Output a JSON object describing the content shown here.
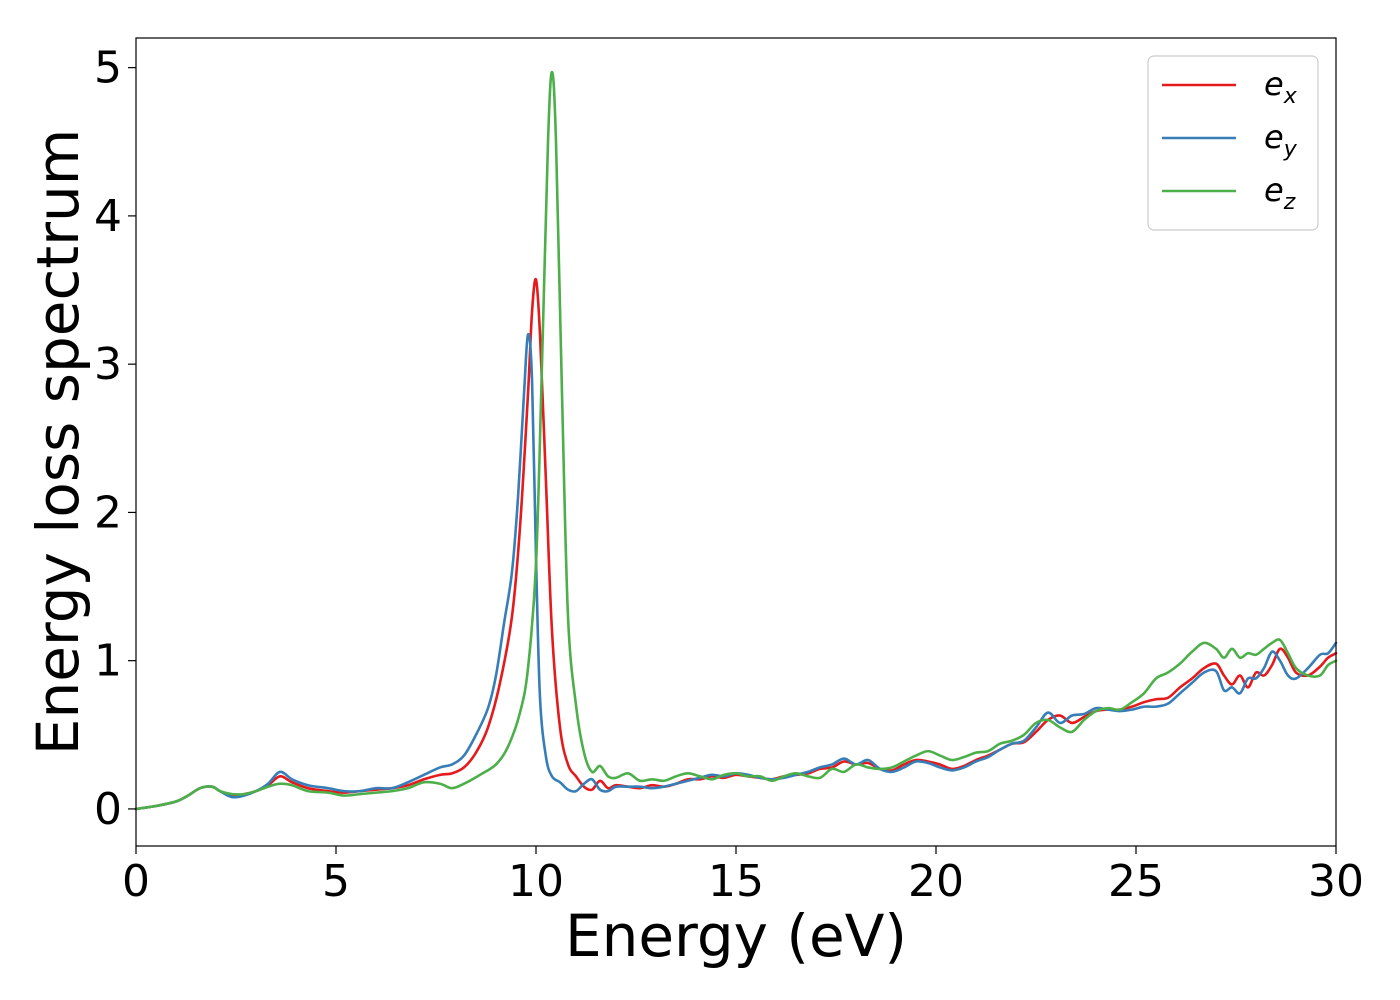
{
  "chart_data": {
    "type": "line",
    "xlabel": "Energy (eV)",
    "ylabel": "Energy loss spectrum",
    "xlim": [
      0,
      30
    ],
    "ylim": [
      -0.25,
      5.2
    ],
    "xticks": [
      0,
      5,
      10,
      15,
      20,
      25,
      30
    ],
    "yticks": [
      0,
      1,
      2,
      3,
      4,
      5
    ],
    "grid": false,
    "legend_position": "top-right",
    "series": [
      {
        "name": "e_x",
        "label_main": "e",
        "label_sub": "x",
        "color": "#e41a1c",
        "x": [
          0,
          0.5,
          1,
          1.3,
          1.6,
          1.9,
          2.1,
          2.4,
          2.7,
          3.0,
          3.3,
          3.6,
          3.9,
          4.3,
          4.8,
          5.2,
          5.6,
          6.0,
          6.4,
          6.8,
          7.2,
          7.6,
          7.9,
          8.2,
          8.5,
          8.8,
          9.1,
          9.4,
          9.6,
          9.8,
          9.9,
          10.0,
          10.1,
          10.25,
          10.4,
          10.6,
          10.8,
          11.0,
          11.2,
          11.4,
          11.6,
          11.8,
          12.0,
          12.3,
          12.6,
          12.9,
          13.2,
          13.5,
          13.8,
          14.1,
          14.4,
          14.7,
          15.0,
          15.3,
          15.6,
          15.9,
          16.2,
          16.5,
          16.8,
          17.1,
          17.4,
          17.7,
          18.0,
          18.3,
          18.6,
          18.9,
          19.2,
          19.5,
          19.8,
          20.1,
          20.4,
          20.7,
          21.0,
          21.3,
          21.6,
          21.9,
          22.2,
          22.5,
          22.8,
          23.1,
          23.4,
          23.7,
          24.0,
          24.3,
          24.6,
          24.9,
          25.2,
          25.5,
          25.8,
          26.1,
          26.4,
          26.7,
          27.0,
          27.2,
          27.4,
          27.6,
          27.8,
          28.0,
          28.2,
          28.4,
          28.6,
          28.8,
          29.0,
          29.3,
          29.6,
          29.8,
          30.0
        ],
        "y": [
          0.0,
          0.02,
          0.05,
          0.09,
          0.14,
          0.15,
          0.12,
          0.09,
          0.1,
          0.12,
          0.16,
          0.22,
          0.18,
          0.14,
          0.12,
          0.11,
          0.12,
          0.13,
          0.14,
          0.16,
          0.2,
          0.23,
          0.24,
          0.28,
          0.38,
          0.55,
          0.85,
          1.3,
          1.9,
          2.8,
          3.35,
          3.57,
          3.2,
          2.2,
          1.2,
          0.55,
          0.3,
          0.22,
          0.15,
          0.13,
          0.19,
          0.14,
          0.16,
          0.15,
          0.14,
          0.16,
          0.15,
          0.17,
          0.2,
          0.2,
          0.22,
          0.21,
          0.23,
          0.22,
          0.21,
          0.2,
          0.22,
          0.23,
          0.24,
          0.27,
          0.28,
          0.32,
          0.3,
          0.31,
          0.27,
          0.26,
          0.3,
          0.33,
          0.32,
          0.3,
          0.27,
          0.29,
          0.33,
          0.36,
          0.4,
          0.44,
          0.45,
          0.52,
          0.6,
          0.63,
          0.58,
          0.62,
          0.66,
          0.67,
          0.67,
          0.69,
          0.72,
          0.74,
          0.75,
          0.82,
          0.88,
          0.95,
          0.98,
          0.9,
          0.84,
          0.9,
          0.82,
          0.92,
          0.9,
          0.97,
          1.08,
          1.02,
          0.92,
          0.9,
          0.96,
          1.02,
          1.05
        ]
      },
      {
        "name": "e_y",
        "label_main": "e",
        "label_sub": "y",
        "color": "#377eb8",
        "x": [
          0,
          0.5,
          1,
          1.3,
          1.6,
          1.9,
          2.1,
          2.4,
          2.7,
          3.0,
          3.3,
          3.6,
          3.9,
          4.3,
          4.8,
          5.2,
          5.6,
          6.0,
          6.4,
          6.8,
          7.2,
          7.6,
          7.9,
          8.2,
          8.5,
          8.8,
          9.0,
          9.2,
          9.4,
          9.55,
          9.7,
          9.8,
          9.9,
          10.0,
          10.1,
          10.25,
          10.4,
          10.6,
          10.8,
          11.0,
          11.2,
          11.4,
          11.6,
          11.8,
          12.0,
          12.3,
          12.6,
          12.9,
          13.2,
          13.5,
          13.8,
          14.1,
          14.4,
          14.7,
          15.0,
          15.3,
          15.6,
          15.9,
          16.2,
          16.5,
          16.8,
          17.1,
          17.4,
          17.7,
          18.0,
          18.3,
          18.6,
          18.9,
          19.2,
          19.5,
          19.8,
          20.1,
          20.4,
          20.7,
          21.0,
          21.3,
          21.6,
          21.9,
          22.2,
          22.5,
          22.8,
          23.1,
          23.4,
          23.7,
          24.0,
          24.3,
          24.6,
          24.9,
          25.2,
          25.5,
          25.8,
          26.1,
          26.4,
          26.7,
          27.0,
          27.2,
          27.4,
          27.6,
          27.8,
          28.0,
          28.2,
          28.4,
          28.6,
          28.8,
          29.0,
          29.3,
          29.6,
          29.8,
          30.0
        ],
        "y": [
          0.0,
          0.02,
          0.05,
          0.09,
          0.14,
          0.15,
          0.12,
          0.08,
          0.09,
          0.12,
          0.17,
          0.25,
          0.2,
          0.16,
          0.14,
          0.12,
          0.12,
          0.14,
          0.14,
          0.18,
          0.23,
          0.28,
          0.3,
          0.36,
          0.5,
          0.68,
          0.9,
          1.25,
          1.6,
          2.1,
          2.8,
          3.2,
          2.9,
          1.7,
          0.75,
          0.35,
          0.22,
          0.18,
          0.13,
          0.12,
          0.17,
          0.2,
          0.13,
          0.12,
          0.15,
          0.15,
          0.15,
          0.14,
          0.15,
          0.17,
          0.19,
          0.21,
          0.23,
          0.22,
          0.24,
          0.23,
          0.21,
          0.2,
          0.21,
          0.23,
          0.25,
          0.28,
          0.3,
          0.34,
          0.3,
          0.33,
          0.27,
          0.25,
          0.28,
          0.32,
          0.31,
          0.28,
          0.26,
          0.28,
          0.32,
          0.35,
          0.4,
          0.44,
          0.46,
          0.55,
          0.65,
          0.58,
          0.63,
          0.64,
          0.68,
          0.67,
          0.66,
          0.67,
          0.69,
          0.69,
          0.71,
          0.78,
          0.85,
          0.92,
          0.93,
          0.8,
          0.82,
          0.78,
          0.88,
          0.88,
          0.95,
          1.06,
          1.0,
          0.9,
          0.88,
          0.95,
          1.04,
          1.05,
          1.12
        ]
      },
      {
        "name": "e_z",
        "label_main": "e",
        "label_sub": "z",
        "color": "#4daf4a",
        "x": [
          0,
          0.5,
          1,
          1.3,
          1.6,
          1.9,
          2.1,
          2.4,
          2.7,
          3.0,
          3.3,
          3.6,
          3.9,
          4.3,
          4.8,
          5.2,
          5.6,
          6.0,
          6.4,
          6.8,
          7.2,
          7.6,
          7.9,
          8.2,
          8.6,
          9.0,
          9.3,
          9.6,
          9.8,
          10.0,
          10.15,
          10.3,
          10.4,
          10.5,
          10.65,
          10.8,
          11.0,
          11.2,
          11.4,
          11.6,
          11.8,
          12.0,
          12.3,
          12.6,
          12.9,
          13.2,
          13.5,
          13.8,
          14.1,
          14.4,
          14.7,
          15.0,
          15.3,
          15.6,
          15.9,
          16.2,
          16.5,
          16.8,
          17.1,
          17.4,
          17.7,
          18.0,
          18.3,
          18.6,
          18.9,
          19.2,
          19.5,
          19.8,
          20.1,
          20.4,
          20.7,
          21.0,
          21.3,
          21.6,
          21.9,
          22.2,
          22.5,
          22.8,
          23.1,
          23.4,
          23.7,
          24.0,
          24.3,
          24.6,
          24.9,
          25.2,
          25.5,
          25.8,
          26.1,
          26.4,
          26.7,
          27.0,
          27.2,
          27.4,
          27.6,
          27.8,
          28.0,
          28.2,
          28.4,
          28.6,
          28.8,
          29.0,
          29.3,
          29.6,
          29.8,
          30.0
        ],
        "y": [
          0.0,
          0.02,
          0.05,
          0.09,
          0.14,
          0.15,
          0.12,
          0.1,
          0.1,
          0.12,
          0.15,
          0.17,
          0.16,
          0.12,
          0.11,
          0.09,
          0.1,
          0.11,
          0.12,
          0.14,
          0.18,
          0.17,
          0.14,
          0.17,
          0.23,
          0.3,
          0.42,
          0.65,
          0.95,
          1.65,
          3.0,
          4.5,
          4.97,
          4.5,
          2.8,
          1.3,
          0.7,
          0.38,
          0.25,
          0.29,
          0.22,
          0.21,
          0.24,
          0.19,
          0.2,
          0.19,
          0.22,
          0.24,
          0.22,
          0.2,
          0.23,
          0.24,
          0.22,
          0.22,
          0.19,
          0.22,
          0.24,
          0.22,
          0.21,
          0.27,
          0.25,
          0.3,
          0.28,
          0.27,
          0.28,
          0.32,
          0.36,
          0.39,
          0.36,
          0.33,
          0.35,
          0.38,
          0.39,
          0.44,
          0.46,
          0.5,
          0.58,
          0.6,
          0.55,
          0.52,
          0.6,
          0.66,
          0.68,
          0.67,
          0.72,
          0.78,
          0.88,
          0.92,
          0.98,
          1.06,
          1.12,
          1.08,
          1.02,
          1.08,
          1.02,
          1.05,
          1.04,
          1.08,
          1.12,
          1.14,
          1.05,
          0.95,
          0.9,
          0.9,
          0.97,
          1.0
        ]
      }
    ]
  }
}
